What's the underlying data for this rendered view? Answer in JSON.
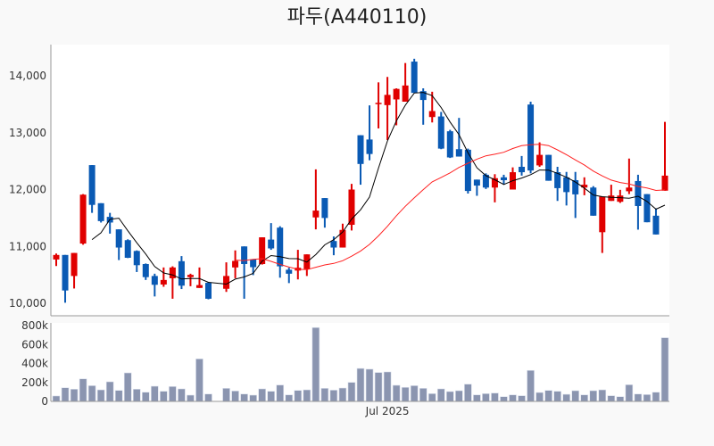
{
  "chart_data": {
    "type": "candlestick",
    "title": "파두(A440110)",
    "price_axis": {
      "ticks": [
        10000,
        11000,
        12000,
        13000,
        14000
      ],
      "tick_labels": [
        "10,000",
        "11,000",
        "12,000",
        "13,000",
        "14,000"
      ],
      "range": [
        9800,
        14550
      ]
    },
    "volume_axis": {
      "ticks": [
        0,
        200000,
        400000,
        600000,
        800000
      ],
      "tick_labels": [
        "0",
        "200k",
        "400k",
        "600k",
        "800k"
      ],
      "range": [
        0,
        800000
      ]
    },
    "x_axis": {
      "labels": [
        {
          "index": 37,
          "text": "Jul 2025"
        }
      ]
    },
    "moving_averages": [
      {
        "period": 5,
        "color": "#000000"
      },
      {
        "period": 20,
        "color": "#ff2020"
      }
    ],
    "colors": {
      "up": "#e00000",
      "down": "#0a5ab4",
      "volume": "#8b95b0"
    },
    "ohlc": [
      [
        10770,
        10875,
        10655,
        10850
      ],
      [
        10850,
        10850,
        10010,
        10225
      ],
      [
        10480,
        10885,
        10260,
        10885
      ],
      [
        11050,
        11920,
        11030,
        11910
      ],
      [
        12430,
        12430,
        11590,
        11730
      ],
      [
        11760,
        11760,
        11420,
        11445
      ],
      [
        11520,
        11590,
        11225,
        11420
      ],
      [
        11300,
        11300,
        10760,
        10980
      ],
      [
        11110,
        11125,
        10795,
        10800
      ],
      [
        10920,
        10930,
        10550,
        10670
      ],
      [
        10690,
        10700,
        10410,
        10460
      ],
      [
        10480,
        10520,
        10120,
        10325
      ],
      [
        10330,
        10630,
        10290,
        10410
      ],
      [
        10440,
        10650,
        10080,
        10630
      ],
      [
        10740,
        10830,
        10250,
        10310
      ],
      [
        10460,
        10520,
        10300,
        10500
      ],
      [
        10270,
        10630,
        10270,
        10320
      ],
      [
        10360,
        10370,
        10070,
        10080
      ],
      null,
      [
        10255,
        10720,
        10200,
        10480
      ],
      [
        10630,
        10930,
        10440,
        10745
      ],
      [
        11000,
        11000,
        10080,
        10690
      ],
      [
        10770,
        10770,
        10495,
        10635
      ],
      [
        10690,
        11160,
        10680,
        11160
      ],
      [
        11120,
        11410,
        10940,
        10965
      ],
      [
        11330,
        11355,
        10450,
        10650
      ],
      [
        10590,
        10625,
        10355,
        10520
      ],
      [
        10575,
        10940,
        10420,
        10625
      ],
      [
        10600,
        10860,
        10480,
        10860
      ],
      [
        11510,
        12355,
        11300,
        11630
      ],
      [
        11850,
        11850,
        11330,
        11500
      ],
      [
        11095,
        11175,
        10845,
        10980
      ],
      [
        10980,
        11400,
        10980,
        11290
      ],
      [
        11380,
        12100,
        11280,
        12000
      ],
      [
        12955,
        12955,
        12085,
        12450
      ],
      [
        12880,
        13480,
        12515,
        12625
      ],
      [
        13505,
        13885,
        13075,
        13525
      ],
      [
        13485,
        13980,
        12870,
        13665
      ],
      [
        13585,
        13780,
        13130,
        13770
      ],
      [
        13545,
        14225,
        13545,
        13830
      ],
      [
        14250,
        14300,
        13700,
        13700
      ],
      [
        13730,
        13780,
        13140,
        13575
      ],
      [
        13275,
        13720,
        13180,
        13380
      ],
      [
        13285,
        13365,
        12710,
        12720
      ],
      [
        13025,
        13050,
        12555,
        12565
      ],
      [
        12710,
        13260,
        12580,
        12580
      ],
      [
        12700,
        12720,
        11930,
        11975
      ],
      [
        12175,
        12175,
        11890,
        12070
      ],
      [
        12260,
        12285,
        12010,
        12035
      ],
      [
        12035,
        12270,
        11775,
        12200
      ],
      [
        12215,
        12260,
        12085,
        12165
      ],
      [
        12000,
        12390,
        12000,
        12305
      ],
      [
        12400,
        12590,
        12245,
        12305
      ],
      [
        13495,
        13545,
        12285,
        12335
      ],
      [
        12425,
        12830,
        12400,
        12610
      ],
      [
        12610,
        12610,
        12155,
        12155
      ],
      [
        12305,
        12400,
        11800,
        12025
      ],
      [
        12215,
        12310,
        11720,
        11955
      ],
      [
        12165,
        12310,
        11500,
        11915
      ],
      [
        12035,
        12215,
        11900,
        12085
      ],
      [
        12035,
        12060,
        11540,
        11540
      ],
      [
        11250,
        11875,
        10885,
        11875
      ],
      [
        11800,
        12085,
        11800,
        11895
      ],
      [
        11785,
        11995,
        11765,
        11895
      ],
      [
        11970,
        12545,
        11920,
        12035
      ],
      [
        12150,
        12260,
        11295,
        11710
      ],
      [
        11920,
        11920,
        11425,
        11425
      ],
      [
        11540,
        11670,
        11210,
        11210
      ],
      [
        11980,
        13190,
        11980,
        12245
      ]
    ],
    "volume": [
      57000,
      144000,
      129000,
      238000,
      166000,
      122000,
      207000,
      116000,
      301000,
      129000,
      97000,
      160000,
      107000,
      157000,
      132000,
      66000,
      449000,
      78000,
      null,
      138000,
      110000,
      78000,
      66000,
      132000,
      107000,
      173000,
      69000,
      116000,
      122000,
      779000,
      138000,
      119000,
      141000,
      201000,
      348000,
      340000,
      305000,
      311000,
      170000,
      148000,
      166000,
      138000,
      82000,
      132000,
      104000,
      113000,
      182000,
      69000,
      82000,
      88000,
      50000,
      69000,
      60000,
      327000,
      94000,
      116000,
      107000,
      75000,
      113000,
      69000,
      113000,
      122000,
      60000,
      50000,
      176000,
      78000,
      72000,
      97000,
      672000
    ]
  }
}
